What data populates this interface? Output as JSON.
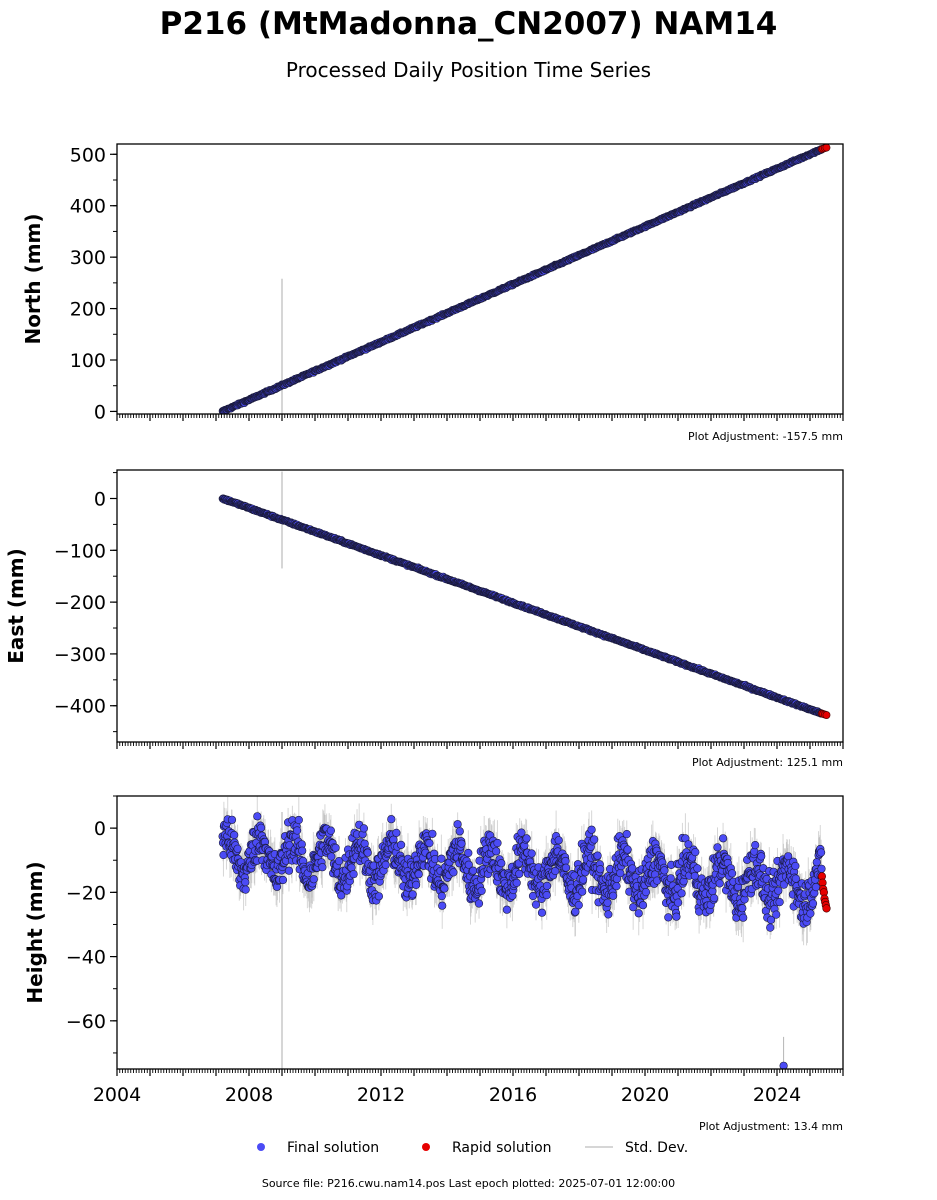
{
  "header": {
    "title": "P216 (MtMadonna_CN2007) NAM14",
    "subtitle": "Processed Daily Position Time Series"
  },
  "colors": {
    "final": "#4b4bf5",
    "rapid": "#e60000",
    "stddev": "#c8c8c8",
    "edge": "#1a1a3a"
  },
  "chart_data": [
    {
      "type": "scatter",
      "ylabel": "North (mm)",
      "xlim": [
        2004,
        2026
      ],
      "ylim": [
        -5,
        520
      ],
      "yticks": [
        0,
        100,
        200,
        300,
        400,
        500
      ],
      "xticks": [
        2004,
        2008,
        2012,
        2016,
        2020,
        2024
      ],
      "adjustment": "Plot Adjustment: -157.5 mm",
      "final_solution": {
        "x_start": 2007.2,
        "x_end": 2025.35,
        "y_start": 0,
        "y_end": 510,
        "scatter_mm": 2.5
      },
      "rapid_solution": {
        "x": [
          2025.36,
          2025.4,
          2025.45,
          2025.5
        ],
        "y": [
          510,
          511,
          512,
          513
        ]
      },
      "std_dev_spike": {
        "x": 2009.0,
        "y_low": -5,
        "y_high": 258
      }
    },
    {
      "type": "scatter",
      "ylabel": "East (mm)",
      "xlim": [
        2004,
        2026
      ],
      "ylim": [
        -470,
        55
      ],
      "yticks": [
        0,
        -100,
        -200,
        -300,
        -400
      ],
      "xticks": [
        2004,
        2008,
        2012,
        2016,
        2020,
        2024
      ],
      "adjustment": "Plot Adjustment: 125.1 mm",
      "final_solution": {
        "x_start": 2007.2,
        "x_end": 2025.35,
        "y_start": 0,
        "y_end": -415,
        "scatter_mm": 2.5
      },
      "rapid_solution": {
        "x": [
          2025.36,
          2025.4,
          2025.45,
          2025.5
        ],
        "y": [
          -415,
          -416,
          -417,
          -418
        ]
      },
      "std_dev_spike": {
        "x": 2009.0,
        "y_low": -135,
        "y_high": 52
      }
    },
    {
      "type": "scatter",
      "ylabel": "Height (mm)",
      "xlim": [
        2004,
        2026
      ],
      "ylim": [
        -75,
        10
      ],
      "yticks": [
        0,
        -20,
        -40,
        -60
      ],
      "xticks": [
        2004,
        2008,
        2012,
        2016,
        2020,
        2024
      ],
      "xticklabels": [
        "2004",
        "2008",
        "2012",
        "2016",
        "2020",
        "2024"
      ],
      "adjustment": "Plot Adjustment: 13.4 mm",
      "final_solution": {
        "x_start": 2007.2,
        "x_end": 2025.35,
        "trend_start": -8,
        "trend_end": -18,
        "seasonal_amp": 6,
        "noise_mm": 5
      },
      "rapid_solution": {
        "x": [
          2025.36,
          2025.38,
          2025.4,
          2025.42,
          2025.44,
          2025.46,
          2025.48,
          2025.5
        ],
        "y": [
          -15,
          -17,
          -19,
          -20,
          -22,
          -23,
          -24,
          -25
        ]
      },
      "std_dev_spike": {
        "x": 2009.0,
        "y_low": -75,
        "y_high": 5
      },
      "outlier": {
        "x": 2024.2,
        "y": -74
      }
    }
  ],
  "legend": {
    "final_label": "Final solution",
    "rapid_label": "Rapid solution",
    "std_label": "Std. Dev."
  },
  "footer": {
    "source": "Source file: P216.cwu.nam14.pos  Last epoch plotted: 2025-07-01 12:00:00"
  }
}
